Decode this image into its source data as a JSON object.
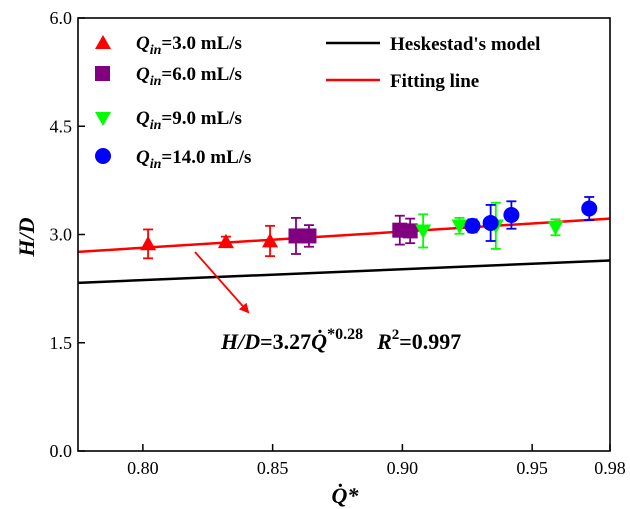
{
  "chart_data": {
    "type": "scatter",
    "xlim": [
      0.775,
      0.98
    ],
    "ylim": [
      0.0,
      6.0
    ],
    "x_ticks": [
      "0.80",
      "0.85",
      "0.90",
      "0.95",
      "0.98"
    ],
    "y_ticks": [
      "0.0",
      "1.5",
      "3.0",
      "4.5",
      "6.0"
    ],
    "x_tick_values": [
      0.8,
      0.85,
      0.9,
      0.95,
      0.98
    ],
    "y_tick_values": [
      0.0,
      1.5,
      3.0,
      4.5,
      6.0
    ],
    "xlabel": "Q̇*",
    "ylabel": "H/D",
    "grid": false,
    "legend_placement": "top",
    "series": [
      {
        "name": "Qin=3.0 mL/s",
        "marker": "triangle-up",
        "color": "#ff0000",
        "points": [
          {
            "x": 0.802,
            "y": 2.87,
            "err": 0.2
          },
          {
            "x": 0.832,
            "y": 2.9,
            "err": 0.07
          },
          {
            "x": 0.849,
            "y": 2.91,
            "err": 0.21
          }
        ]
      },
      {
        "name": "Qin=6.0 mL/s",
        "marker": "square",
        "color": "#800080",
        "points": [
          {
            "x": 0.859,
            "y": 2.98,
            "err": 0.25
          },
          {
            "x": 0.864,
            "y": 2.98,
            "err": 0.15
          },
          {
            "x": 0.899,
            "y": 3.06,
            "err": 0.2
          },
          {
            "x": 0.903,
            "y": 3.05,
            "err": 0.17
          }
        ]
      },
      {
        "name": "Qin=9.0 mL/s",
        "marker": "triangle-down",
        "color": "#00ff00",
        "points": [
          {
            "x": 0.908,
            "y": 3.05,
            "err": 0.23
          },
          {
            "x": 0.922,
            "y": 3.12,
            "err": 0.11
          },
          {
            "x": 0.936,
            "y": 3.12,
            "err": 0.32
          },
          {
            "x": 0.959,
            "y": 3.1,
            "err": 0.11
          }
        ]
      },
      {
        "name": "Qin=14.0 mL/s",
        "marker": "circle",
        "color": "#0000ff",
        "points": [
          {
            "x": 0.927,
            "y": 3.12,
            "err": 0.09
          },
          {
            "x": 0.934,
            "y": 3.16,
            "err": 0.25
          },
          {
            "x": 0.942,
            "y": 3.27,
            "err": 0.19
          },
          {
            "x": 0.972,
            "y": 3.36,
            "err": 0.16
          }
        ]
      }
    ],
    "lines": [
      {
        "name": "Heskestad's model",
        "color": "#000000",
        "x": [
          0.775,
          0.98
        ],
        "y": [
          2.33,
          2.64
        ]
      },
      {
        "name": "Fitting line",
        "color": "#ff0000",
        "x": [
          0.775,
          0.98
        ],
        "y": [
          2.76,
          3.22
        ]
      }
    ],
    "annotation": {
      "lhs": "H/D",
      "eq": "=3.27",
      "q": "Q̇",
      "exp": "*0.28",
      "r": "R",
      "r_sup": "2",
      "r_val": "=0.997"
    },
    "legend": {
      "q_sub_symbol": "Q",
      "q_sub": "in",
      "values": [
        "=3.0 mL/s",
        "=6.0 mL/s",
        "=9.0 mL/s",
        "=14.0 mL/s"
      ],
      "line_labels": [
        "Heskestad's model",
        "Fitting line"
      ]
    }
  }
}
